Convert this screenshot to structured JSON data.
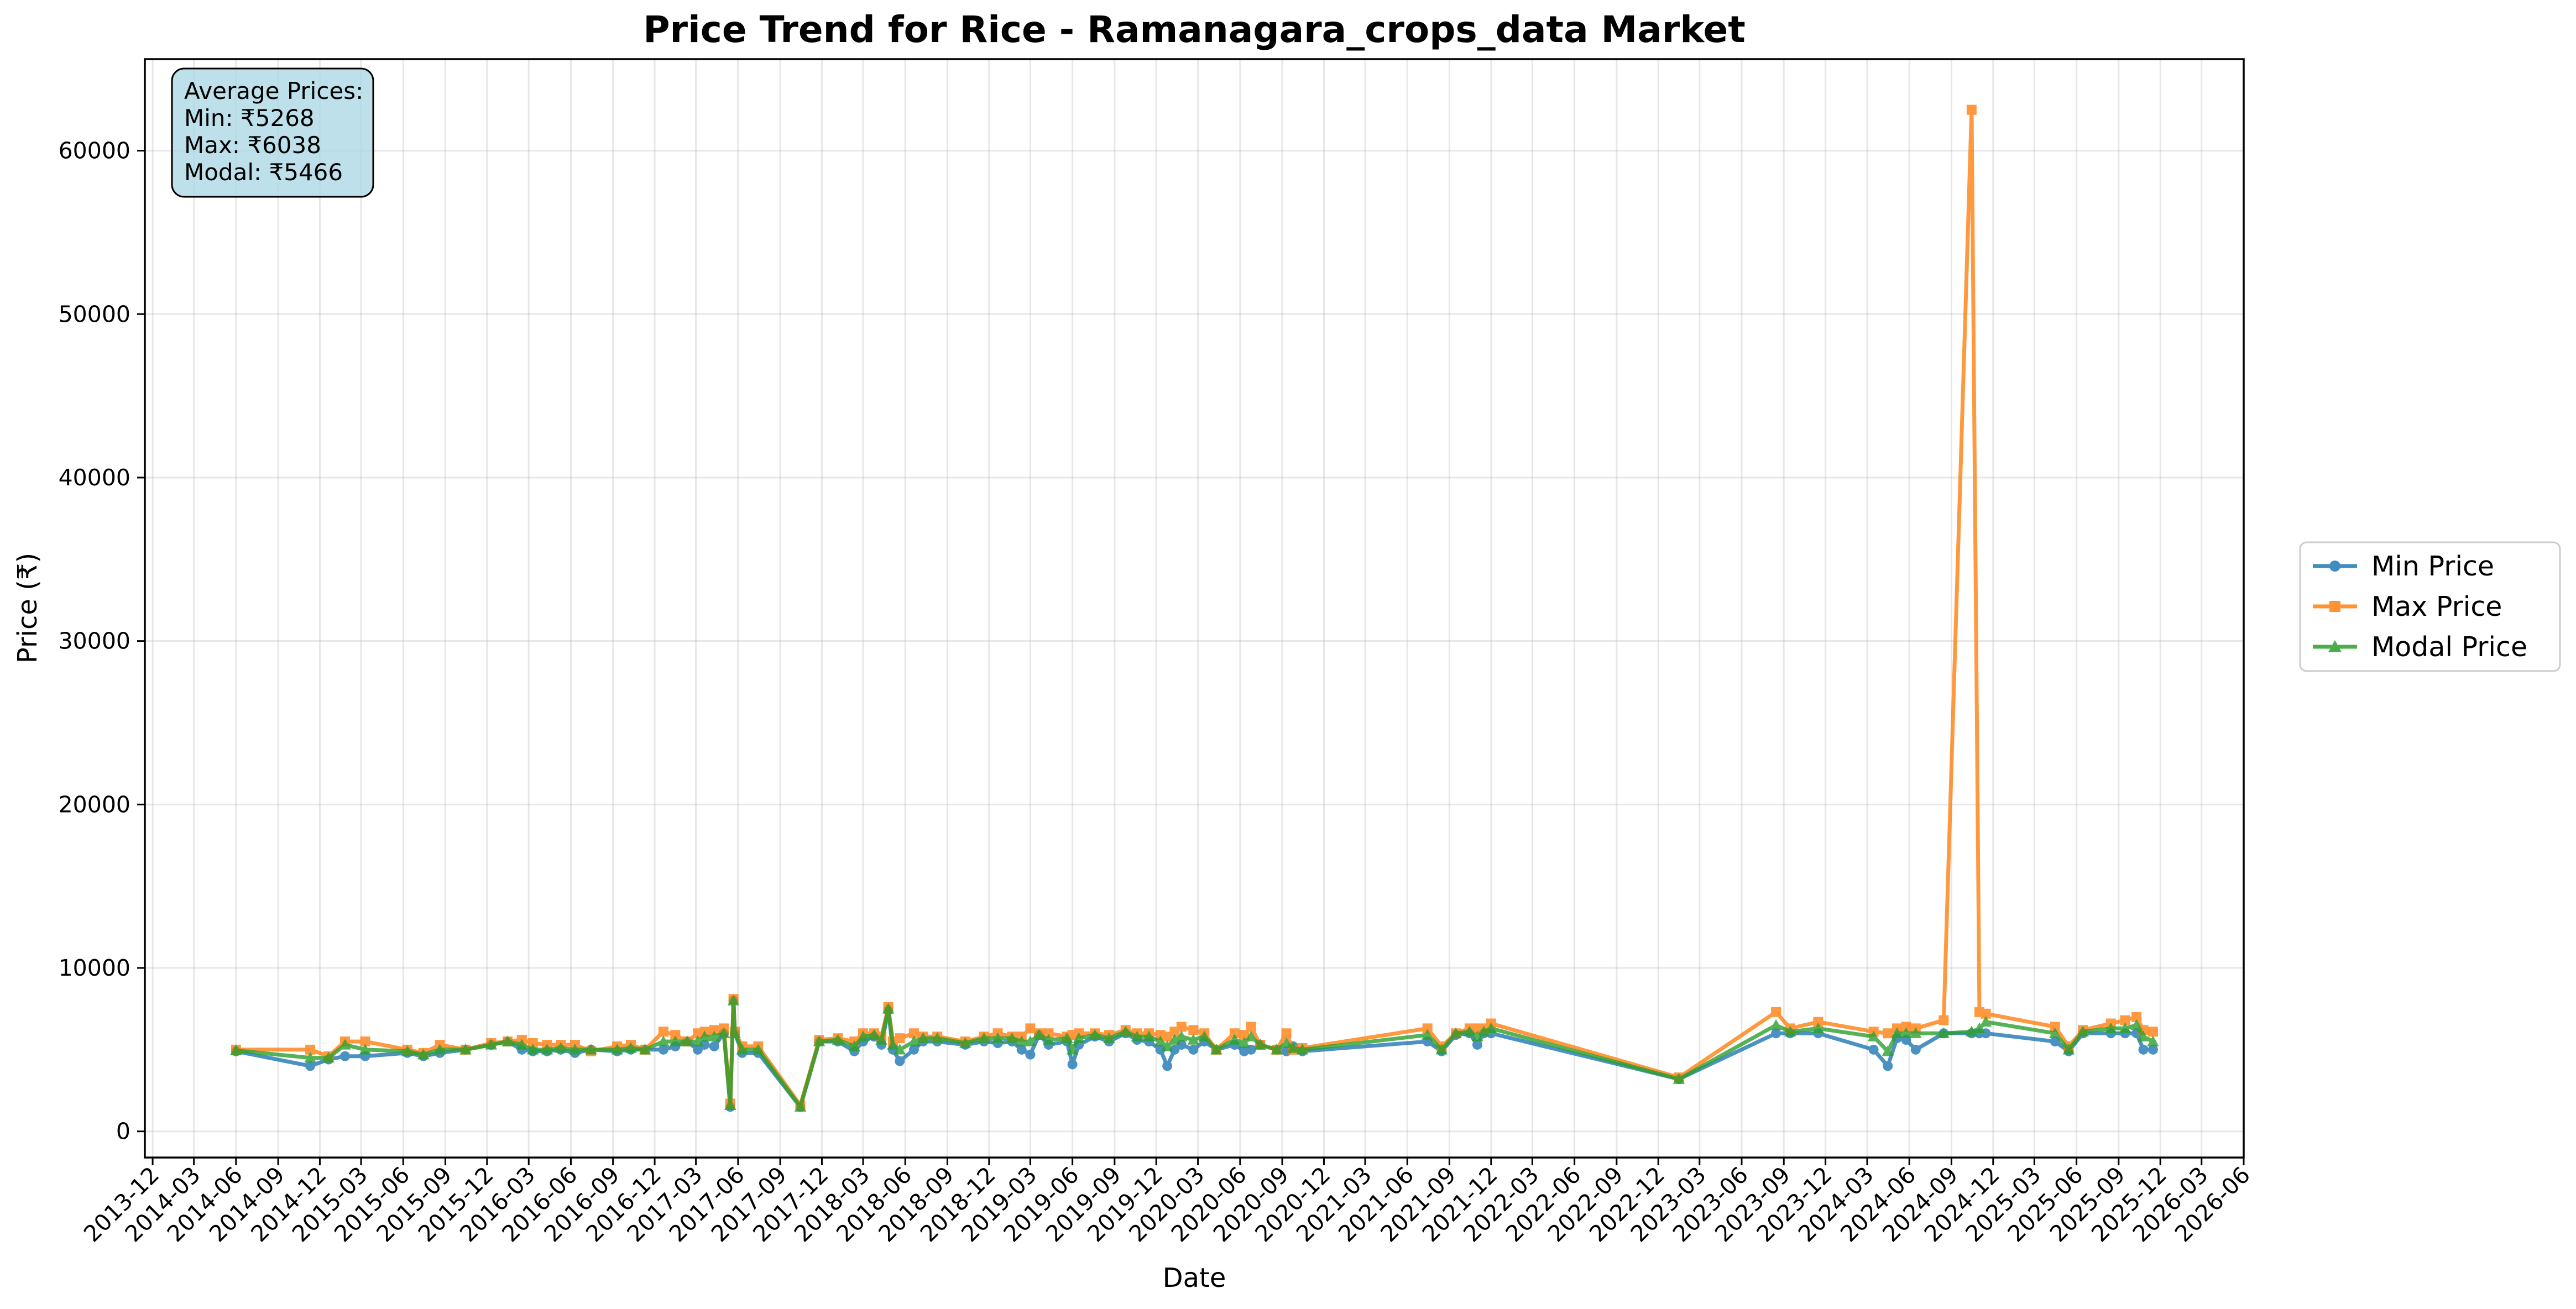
{
  "chart_data": {
    "type": "line",
    "title": "Price Trend for Rice - Ramanagara_crops_data Market",
    "xlabel": "Date",
    "ylabel": "Price (₹)",
    "xlim": [
      "2013-11-14",
      "2026-06-01"
    ],
    "ylim": [
      -1600,
      65600
    ],
    "grid": true,
    "legend": "outside-right",
    "y_ticks": [
      0,
      10000,
      20000,
      30000,
      40000,
      50000,
      60000
    ],
    "x_ticks": [
      "2013-12",
      "2014-03",
      "2014-06",
      "2014-09",
      "2014-12",
      "2015-03",
      "2015-06",
      "2015-09",
      "2015-12",
      "2016-03",
      "2016-06",
      "2016-09",
      "2016-12",
      "2017-03",
      "2017-06",
      "2017-09",
      "2017-12",
      "2018-03",
      "2018-06",
      "2018-09",
      "2018-12",
      "2019-03",
      "2019-06",
      "2019-09",
      "2019-12",
      "2020-03",
      "2020-06",
      "2020-09",
      "2020-12",
      "2021-03",
      "2021-06",
      "2021-09",
      "2021-12",
      "2022-03",
      "2022-06",
      "2022-09",
      "2022-12",
      "2023-03",
      "2023-06",
      "2023-09",
      "2023-12",
      "2024-03",
      "2024-06",
      "2024-09",
      "2024-12",
      "2025-03",
      "2025-06",
      "2025-09",
      "2025-12",
      "2026-03",
      "2026-06"
    ],
    "annotation": {
      "heading": "Average Prices:",
      "lines": [
        "Min: ₹5268",
        "Max: ₹6038",
        "Modal: ₹5466"
      ]
    },
    "x": [
      "2014-06-01",
      "2014-11-10",
      "2014-12-20",
      "2015-01-25",
      "2015-03-10",
      "2015-06-10",
      "2015-07-15",
      "2015-08-20",
      "2015-10-15",
      "2015-12-10",
      "2016-01-15",
      "2016-02-15",
      "2016-03-10",
      "2016-04-10",
      "2016-05-10",
      "2016-06-10",
      "2016-07-15",
      "2016-09-10",
      "2016-10-10",
      "2016-11-10",
      "2016-12-20",
      "2017-01-15",
      "2017-02-10",
      "2017-03-05",
      "2017-03-20",
      "2017-04-10",
      "2017-05-01",
      "2017-05-15",
      "2017-05-22",
      "2017-05-25",
      "2017-06-10",
      "2017-07-15",
      "2017-10-15",
      "2017-11-25",
      "2018-01-05",
      "2018-02-10",
      "2018-03-01",
      "2018-03-25",
      "2018-04-10",
      "2018-04-25",
      "2018-05-05",
      "2018-05-20",
      "2018-06-20",
      "2018-07-10",
      "2018-08-10",
      "2018-10-10",
      "2018-11-20",
      "2018-12-20",
      "2019-01-20",
      "2019-02-10",
      "2019-03-01",
      "2019-03-20",
      "2019-04-10",
      "2019-05-20",
      "2019-06-01",
      "2019-06-15",
      "2019-07-20",
      "2019-08-20",
      "2019-09-25",
      "2019-10-20",
      "2019-11-15",
      "2019-12-10",
      "2019-12-25",
      "2020-01-10",
      "2020-01-25",
      "2020-02-20",
      "2020-03-15",
      "2020-04-10",
      "2020-05-20",
      "2020-06-10",
      "2020-06-25",
      "2020-07-15",
      "2020-08-20",
      "2020-09-10",
      "2020-09-25",
      "2020-10-15",
      "2021-07-15",
      "2021-08-15",
      "2021-09-15",
      "2021-10-15",
      "2021-11-01",
      "2021-11-15",
      "2021-12-01",
      "2023-01-15",
      "2023-08-15",
      "2023-09-15",
      "2023-11-15",
      "2024-03-15",
      "2024-04-15",
      "2024-05-05",
      "2024-05-25",
      "2024-06-15",
      "2024-08-15",
      "2024-10-15",
      "2024-11-01",
      "2024-11-15",
      "2025-04-15",
      "2025-05-15",
      "2025-06-15",
      "2025-08-15",
      "2025-09-15",
      "2025-10-10",
      "2025-10-25",
      "2025-11-15"
    ],
    "series": [
      {
        "name": "Min Price",
        "color": "#1f77b4",
        "marker": "circle",
        "values": [
          4900,
          4000,
          4400,
          4600,
          4600,
          4800,
          4600,
          4800,
          5000,
          5300,
          5500,
          5000,
          4900,
          4900,
          5000,
          4800,
          5000,
          4900,
          5000,
          5000,
          5000,
          5200,
          5500,
          5000,
          5300,
          5200,
          6000,
          1500,
          8000,
          6000,
          4800,
          4800,
          1500,
          5500,
          5500,
          4900,
          5500,
          5800,
          5300,
          7400,
          5000,
          4300,
          5000,
          5500,
          5500,
          5300,
          5500,
          5400,
          5500,
          5000,
          4700,
          5900,
          5300,
          5500,
          4100,
          5300,
          5800,
          5500,
          6000,
          5600,
          5500,
          5000,
          4000,
          5000,
          5300,
          5000,
          5500,
          5000,
          5300,
          4900,
          5000,
          5300,
          5000,
          4900,
          5200,
          4900,
          5500,
          4900,
          5900,
          6000,
          5300,
          6000,
          6000,
          3200,
          6000,
          6000,
          6000,
          5000,
          4000,
          5700,
          5600,
          5000,
          6000,
          6000,
          6000,
          6000,
          5500,
          4900,
          6000,
          6000,
          6000,
          6000,
          5000,
          5000
        ]
      },
      {
        "name": "Max Price",
        "color": "#ff7f0e",
        "marker": "square",
        "values": [
          5000,
          5000,
          4600,
          5500,
          5500,
          5000,
          4800,
          5300,
          5000,
          5400,
          5500,
          5600,
          5400,
          5300,
          5300,
          5300,
          4900,
          5200,
          5300,
          5000,
          6100,
          5900,
          5500,
          6000,
          6100,
          6200,
          6300,
          1700,
          8100,
          6100,
          5200,
          5200,
          1600,
          5600,
          5700,
          5500,
          6000,
          6000,
          5800,
          7600,
          5500,
          5700,
          6000,
          5800,
          5800,
          5500,
          5800,
          6000,
          5800,
          5800,
          6300,
          6000,
          6000,
          5800,
          5900,
          6000,
          6000,
          5900,
          6200,
          6000,
          6000,
          5900,
          5800,
          6100,
          6400,
          6200,
          6000,
          5000,
          6000,
          5900,
          6400,
          5300,
          5000,
          6000,
          5000,
          5100,
          6300,
          5200,
          6000,
          6300,
          6300,
          6300,
          6600,
          3300,
          7300,
          6300,
          6700,
          6100,
          6000,
          6300,
          6400,
          6300,
          6800,
          62500,
          7300,
          7200,
          6400,
          5200,
          6200,
          6600,
          6800,
          7000,
          6200,
          6100
        ]
      },
      {
        "name": "Modal Price",
        "color": "#2ca02c",
        "marker": "triangle",
        "values": [
          4950,
          4500,
          4500,
          5300,
          5000,
          4900,
          4700,
          5000,
          5000,
          5300,
          5500,
          5300,
          5000,
          5000,
          5100,
          5000,
          5000,
          5000,
          5100,
          5000,
          5500,
          5500,
          5500,
          5500,
          5800,
          5800,
          6000,
          1600,
          8000,
          6000,
          5000,
          5000,
          1500,
          5500,
          5600,
          5200,
          5800,
          5900,
          5600,
          7500,
          5300,
          5000,
          5500,
          5700,
          5700,
          5400,
          5700,
          5700,
          5700,
          5500,
          5500,
          5900,
          5600,
          5700,
          5000,
          5700,
          5900,
          5700,
          6100,
          5800,
          5800,
          5500,
          5200,
          5600,
          5800,
          5600,
          5800,
          5000,
          5600,
          5400,
          5800,
          5300,
          5000,
          5400,
          5100,
          5000,
          5900,
          5000,
          6000,
          6100,
          5800,
          6100,
          6300,
          3200,
          6500,
          6100,
          6300,
          5800,
          4900,
          6000,
          6000,
          6000,
          6000,
          6100,
          6300,
          6700,
          6000,
          5000,
          6100,
          6300,
          6300,
          6500,
          5800,
          5500
        ]
      }
    ]
  }
}
